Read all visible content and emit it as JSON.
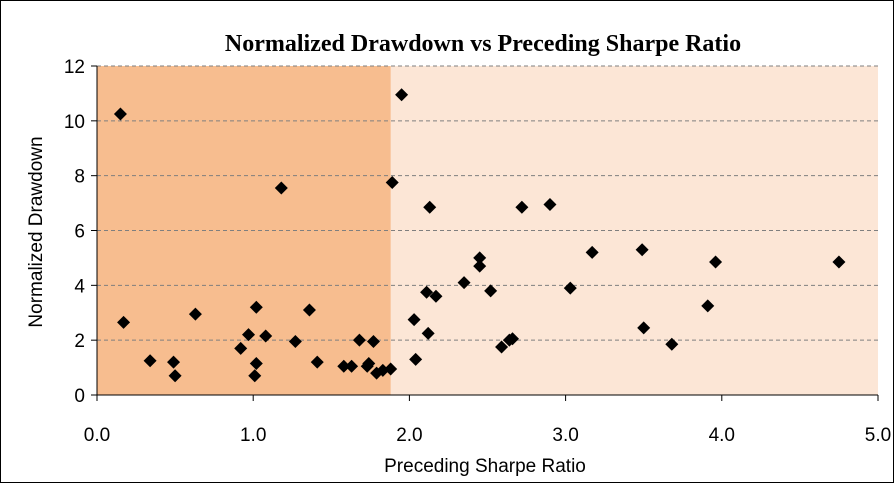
{
  "chart_data": {
    "type": "scatter",
    "title": "Normalized Drawdown vs Preceding Sharpe Ratio",
    "xlabel": "Preceding Sharpe Ratio",
    "ylabel": "Normalized Drawdown",
    "xlim": [
      0,
      5
    ],
    "ylim": [
      0,
      12
    ],
    "x_ticks": [
      "0.0",
      "1.0",
      "2.0",
      "3.0",
      "4.0",
      "5.0"
    ],
    "y_ticks": [
      "0",
      "2",
      "4",
      "6",
      "8",
      "10",
      "12"
    ],
    "grid": "horizontal dashed",
    "shaded_region": {
      "x_from": 0,
      "x_to": 1.88,
      "color": "#f7bd8f"
    },
    "plot_background": "#fce6d6",
    "marker_color": "#000000",
    "series": [
      {
        "marker": "diamond",
        "points": [
          [
            0.15,
            10.25
          ],
          [
            0.17,
            2.65
          ],
          [
            0.34,
            1.25
          ],
          [
            0.49,
            1.2
          ],
          [
            0.5,
            0.7
          ],
          [
            0.63,
            2.95
          ],
          [
            0.92,
            1.7
          ],
          [
            0.97,
            2.2
          ],
          [
            1.01,
            0.7
          ],
          [
            1.02,
            3.2
          ],
          [
            1.02,
            1.15
          ],
          [
            1.08,
            2.15
          ],
          [
            1.18,
            7.55
          ],
          [
            1.27,
            1.95
          ],
          [
            1.36,
            3.1
          ],
          [
            1.41,
            1.2
          ],
          [
            1.58,
            1.05
          ],
          [
            1.63,
            1.05
          ],
          [
            1.68,
            2.0
          ],
          [
            1.73,
            1.05
          ],
          [
            1.74,
            1.15
          ],
          [
            1.77,
            1.95
          ],
          [
            1.79,
            0.8
          ],
          [
            1.83,
            0.9
          ],
          [
            1.88,
            0.95
          ],
          [
            1.89,
            7.75
          ],
          [
            1.95,
            10.95
          ],
          [
            2.03,
            2.75
          ],
          [
            2.04,
            1.3
          ],
          [
            2.11,
            3.75
          ],
          [
            2.12,
            2.25
          ],
          [
            2.13,
            6.85
          ],
          [
            2.17,
            3.6
          ],
          [
            2.35,
            4.1
          ],
          [
            2.45,
            5.0
          ],
          [
            2.45,
            4.7
          ],
          [
            2.52,
            3.8
          ],
          [
            2.59,
            1.75
          ],
          [
            2.64,
            2.0
          ],
          [
            2.66,
            2.05
          ],
          [
            2.72,
            6.85
          ],
          [
            2.9,
            6.95
          ],
          [
            3.03,
            3.9
          ],
          [
            3.17,
            5.2
          ],
          [
            3.49,
            5.3
          ],
          [
            3.5,
            2.45
          ],
          [
            3.68,
            1.85
          ],
          [
            3.91,
            3.25
          ],
          [
            3.96,
            4.85
          ],
          [
            4.75,
            4.85
          ]
        ]
      }
    ]
  }
}
